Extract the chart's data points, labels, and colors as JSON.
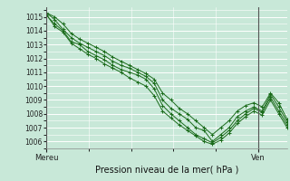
{
  "title": "",
  "xlabel": "Pression niveau de la mer( hPa )",
  "bg_color": "#c8e8d8",
  "plot_bg_color": "#c8e8d8",
  "grid_color_major": "#f0b8b8",
  "grid_color_minor": "#ffffff",
  "line_color": "#1a6b1a",
  "x_tick_left_label": "Mereu",
  "x_tick_right_label": "Ven",
  "x_tick_left_pos": 0.0,
  "x_tick_right_pos": 0.88,
  "ylim": [
    1005.5,
    1015.7
  ],
  "yticks": [
    1006,
    1007,
    1008,
    1009,
    1010,
    1011,
    1012,
    1013,
    1014,
    1015
  ],
  "series": [
    [
      1015.3,
      1014.8,
      1014.1,
      1013.5,
      1013.1,
      1012.8,
      1012.5,
      1012.2,
      1011.8,
      1011.5,
      1011.3,
      1011.0,
      1010.7,
      1010.2,
      1009.0,
      1008.4,
      1008.0,
      1007.6,
      1007.0,
      1006.8,
      1006.0,
      1006.5,
      1007.0,
      1007.8,
      1008.2,
      1008.5,
      1008.2,
      1009.4,
      1008.5,
      1007.4
    ],
    [
      1015.1,
      1014.5,
      1014.0,
      1013.2,
      1013.0,
      1012.5,
      1012.2,
      1011.9,
      1011.5,
      1011.2,
      1011.0,
      1010.8,
      1010.5,
      1009.8,
      1008.6,
      1008.0,
      1007.5,
      1007.0,
      1006.5,
      1006.2,
      1005.9,
      1006.3,
      1006.8,
      1007.5,
      1008.0,
      1008.4,
      1008.1,
      1009.2,
      1008.2,
      1007.2
    ],
    [
      1015.3,
      1015.0,
      1014.5,
      1013.8,
      1013.4,
      1013.1,
      1012.8,
      1012.5,
      1012.1,
      1011.8,
      1011.5,
      1011.2,
      1010.9,
      1010.5,
      1009.5,
      1009.0,
      1008.4,
      1008.0,
      1007.5,
      1007.0,
      1006.5,
      1007.0,
      1007.5,
      1008.2,
      1008.6,
      1008.8,
      1008.5,
      1009.5,
      1008.8,
      1007.6
    ],
    [
      1015.2,
      1014.3,
      1013.9,
      1013.1,
      1012.7,
      1012.3,
      1012.0,
      1011.6,
      1011.3,
      1011.0,
      1010.6,
      1010.3,
      1010.0,
      1009.3,
      1008.2,
      1007.7,
      1007.2,
      1006.8,
      1006.4,
      1006.0,
      1005.8,
      1006.1,
      1006.6,
      1007.3,
      1007.8,
      1008.2,
      1007.9,
      1009.0,
      1008.0,
      1007.0
    ]
  ],
  "marker": "+",
  "linewidth": 0.7,
  "markersize": 2.5,
  "ylabel_fontsize": 5.5,
  "xlabel_fontsize": 7
}
